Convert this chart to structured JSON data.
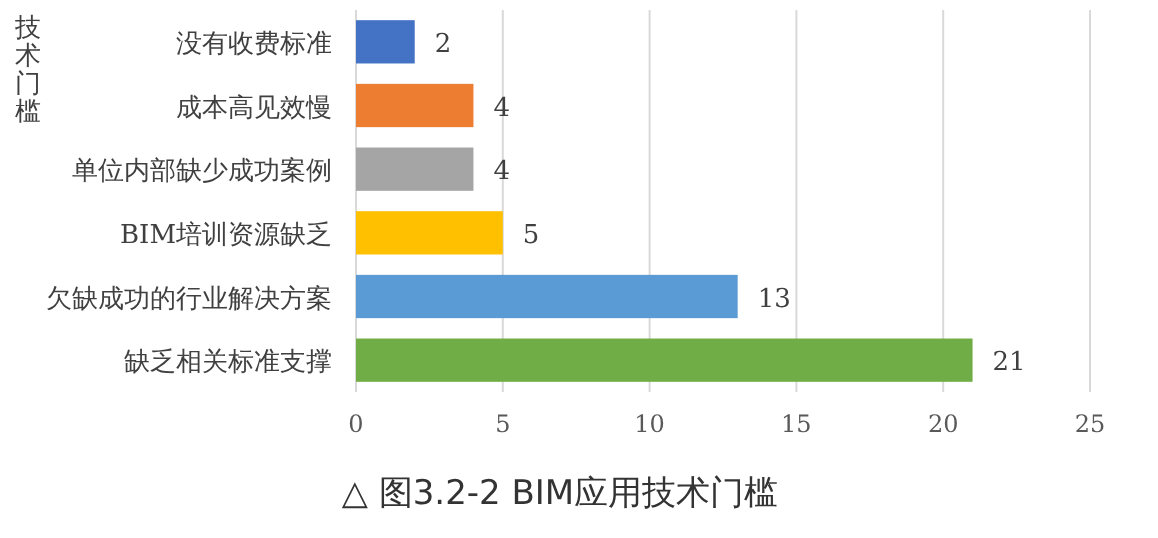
{
  "chart_data": {
    "type": "bar",
    "orientation": "horizontal",
    "title": "△ 图3.2-2 BIM应用技术门槛",
    "ylabel": "技术门槛",
    "categories": [
      "没有收费标准",
      "成本高见效慢",
      "单位内部缺少成功案例",
      "BIM培训资源缺乏",
      "欠缺成功的行业解决方案",
      "缺乏相关标准支撑"
    ],
    "values": [
      2,
      4,
      4,
      5,
      13,
      21
    ],
    "colors": [
      "#4472c4",
      "#ed7d31",
      "#a5a5a5",
      "#ffc000",
      "#5b9bd5",
      "#70ad47"
    ],
    "xlim": [
      0,
      25
    ],
    "xticks": [
      0,
      5,
      10,
      15,
      20,
      25
    ],
    "grid": "x",
    "data_labels": true
  }
}
